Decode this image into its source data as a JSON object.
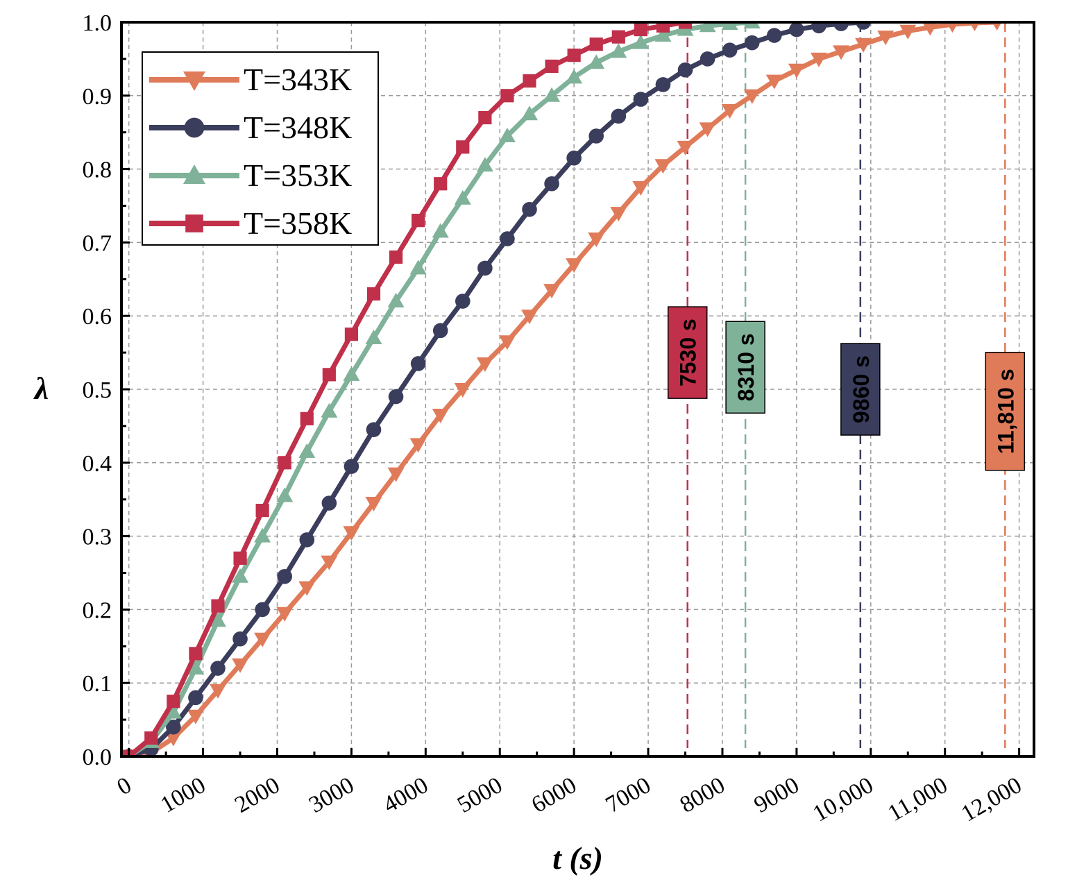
{
  "chart_data": {
    "type": "line",
    "title": "",
    "xlabel": "t (s)",
    "ylabel": "λ",
    "xlim": [
      -100,
      12200
    ],
    "ylim": [
      0,
      1.0
    ],
    "x_ticks": [
      0,
      1000,
      2000,
      3000,
      4000,
      5000,
      6000,
      7000,
      8000,
      9000,
      10000,
      11000,
      12000
    ],
    "x_tick_labels": [
      "0",
      "1000",
      "2000",
      "3000",
      "4000",
      "5000",
      "6000",
      "7000",
      "8000",
      "9000",
      "10,000",
      "11,000",
      "12,000"
    ],
    "y_ticks": [
      0.0,
      0.1,
      0.2,
      0.3,
      0.4,
      0.5,
      0.6,
      0.7,
      0.8,
      0.9,
      1.0
    ],
    "y_tick_labels": [
      "0.0",
      "0.1",
      "0.2",
      "0.3",
      "0.4",
      "0.5",
      "0.6",
      "0.7",
      "0.8",
      "0.9",
      "1.0"
    ],
    "grid": true,
    "legend_position": "top-left",
    "series": [
      {
        "name": "T=343K",
        "color": "#E07B5A",
        "marker": "triangle-down",
        "x": [
          0,
          300,
          600,
          900,
          1200,
          1500,
          1800,
          2100,
          2400,
          2700,
          3000,
          3300,
          3600,
          3900,
          4200,
          4500,
          4800,
          5100,
          5400,
          5700,
          6000,
          6300,
          6600,
          6900,
          7200,
          7500,
          7800,
          8100,
          8400,
          8700,
          9000,
          9300,
          9600,
          9900,
          10200,
          10500,
          10800,
          11100,
          11400,
          11700
        ],
        "values": [
          0.0,
          0.005,
          0.025,
          0.055,
          0.09,
          0.125,
          0.16,
          0.195,
          0.23,
          0.265,
          0.305,
          0.345,
          0.385,
          0.425,
          0.465,
          0.5,
          0.535,
          0.565,
          0.6,
          0.635,
          0.67,
          0.705,
          0.74,
          0.775,
          0.805,
          0.83,
          0.855,
          0.88,
          0.9,
          0.92,
          0.935,
          0.95,
          0.96,
          0.97,
          0.98,
          0.988,
          0.993,
          0.997,
          0.999,
          1.0
        ]
      },
      {
        "name": "T=348K",
        "color": "#3A3D5C",
        "marker": "circle",
        "x": [
          0,
          300,
          600,
          900,
          1200,
          1500,
          1800,
          2100,
          2400,
          2700,
          3000,
          3300,
          3600,
          3900,
          4200,
          4500,
          4800,
          5100,
          5400,
          5700,
          6000,
          6300,
          6600,
          6900,
          7200,
          7500,
          7800,
          8100,
          8400,
          8700,
          9000,
          9300,
          9600,
          9900
        ],
        "values": [
          0.0,
          0.01,
          0.04,
          0.08,
          0.12,
          0.16,
          0.2,
          0.245,
          0.295,
          0.345,
          0.395,
          0.445,
          0.49,
          0.535,
          0.58,
          0.62,
          0.665,
          0.705,
          0.745,
          0.78,
          0.815,
          0.845,
          0.872,
          0.895,
          0.915,
          0.935,
          0.95,
          0.962,
          0.972,
          0.982,
          0.99,
          0.995,
          0.998,
          1.0
        ]
      },
      {
        "name": "T=353K",
        "color": "#7FB299",
        "marker": "triangle-up",
        "x": [
          0,
          300,
          600,
          900,
          1200,
          1500,
          1800,
          2100,
          2400,
          2700,
          3000,
          3300,
          3600,
          3900,
          4200,
          4500,
          4800,
          5100,
          5400,
          5700,
          6000,
          6300,
          6600,
          6900,
          7200,
          7500,
          7800,
          8100,
          8400
        ],
        "values": [
          0.0,
          0.02,
          0.06,
          0.12,
          0.185,
          0.245,
          0.3,
          0.355,
          0.415,
          0.47,
          0.52,
          0.57,
          0.62,
          0.665,
          0.715,
          0.76,
          0.805,
          0.845,
          0.875,
          0.9,
          0.925,
          0.945,
          0.96,
          0.972,
          0.982,
          0.99,
          0.995,
          0.998,
          1.0
        ]
      },
      {
        "name": "T=358K",
        "color": "#C0304A",
        "marker": "square",
        "x": [
          0,
          300,
          600,
          900,
          1200,
          1500,
          1800,
          2100,
          2400,
          2700,
          3000,
          3300,
          3600,
          3900,
          4200,
          4500,
          4800,
          5100,
          5400,
          5700,
          6000,
          6300,
          6600,
          6900,
          7200,
          7500
        ],
        "values": [
          0.0,
          0.025,
          0.075,
          0.14,
          0.205,
          0.27,
          0.335,
          0.4,
          0.46,
          0.52,
          0.575,
          0.63,
          0.68,
          0.73,
          0.78,
          0.83,
          0.87,
          0.9,
          0.92,
          0.94,
          0.955,
          0.97,
          0.98,
          0.99,
          0.995,
          1.0
        ]
      }
    ],
    "annotations": [
      {
        "label": "7530 s",
        "x": 7530,
        "y": 0.55,
        "color": "#C0304A"
      },
      {
        "label": "8310 s",
        "x": 8310,
        "y": 0.53,
        "color": "#7FB299"
      },
      {
        "label": "9860 s",
        "x": 9860,
        "y": 0.5,
        "color": "#3A3D5C"
      },
      {
        "label": "11,810 s",
        "x": 11810,
        "y": 0.47,
        "color": "#E07B5A"
      }
    ]
  }
}
